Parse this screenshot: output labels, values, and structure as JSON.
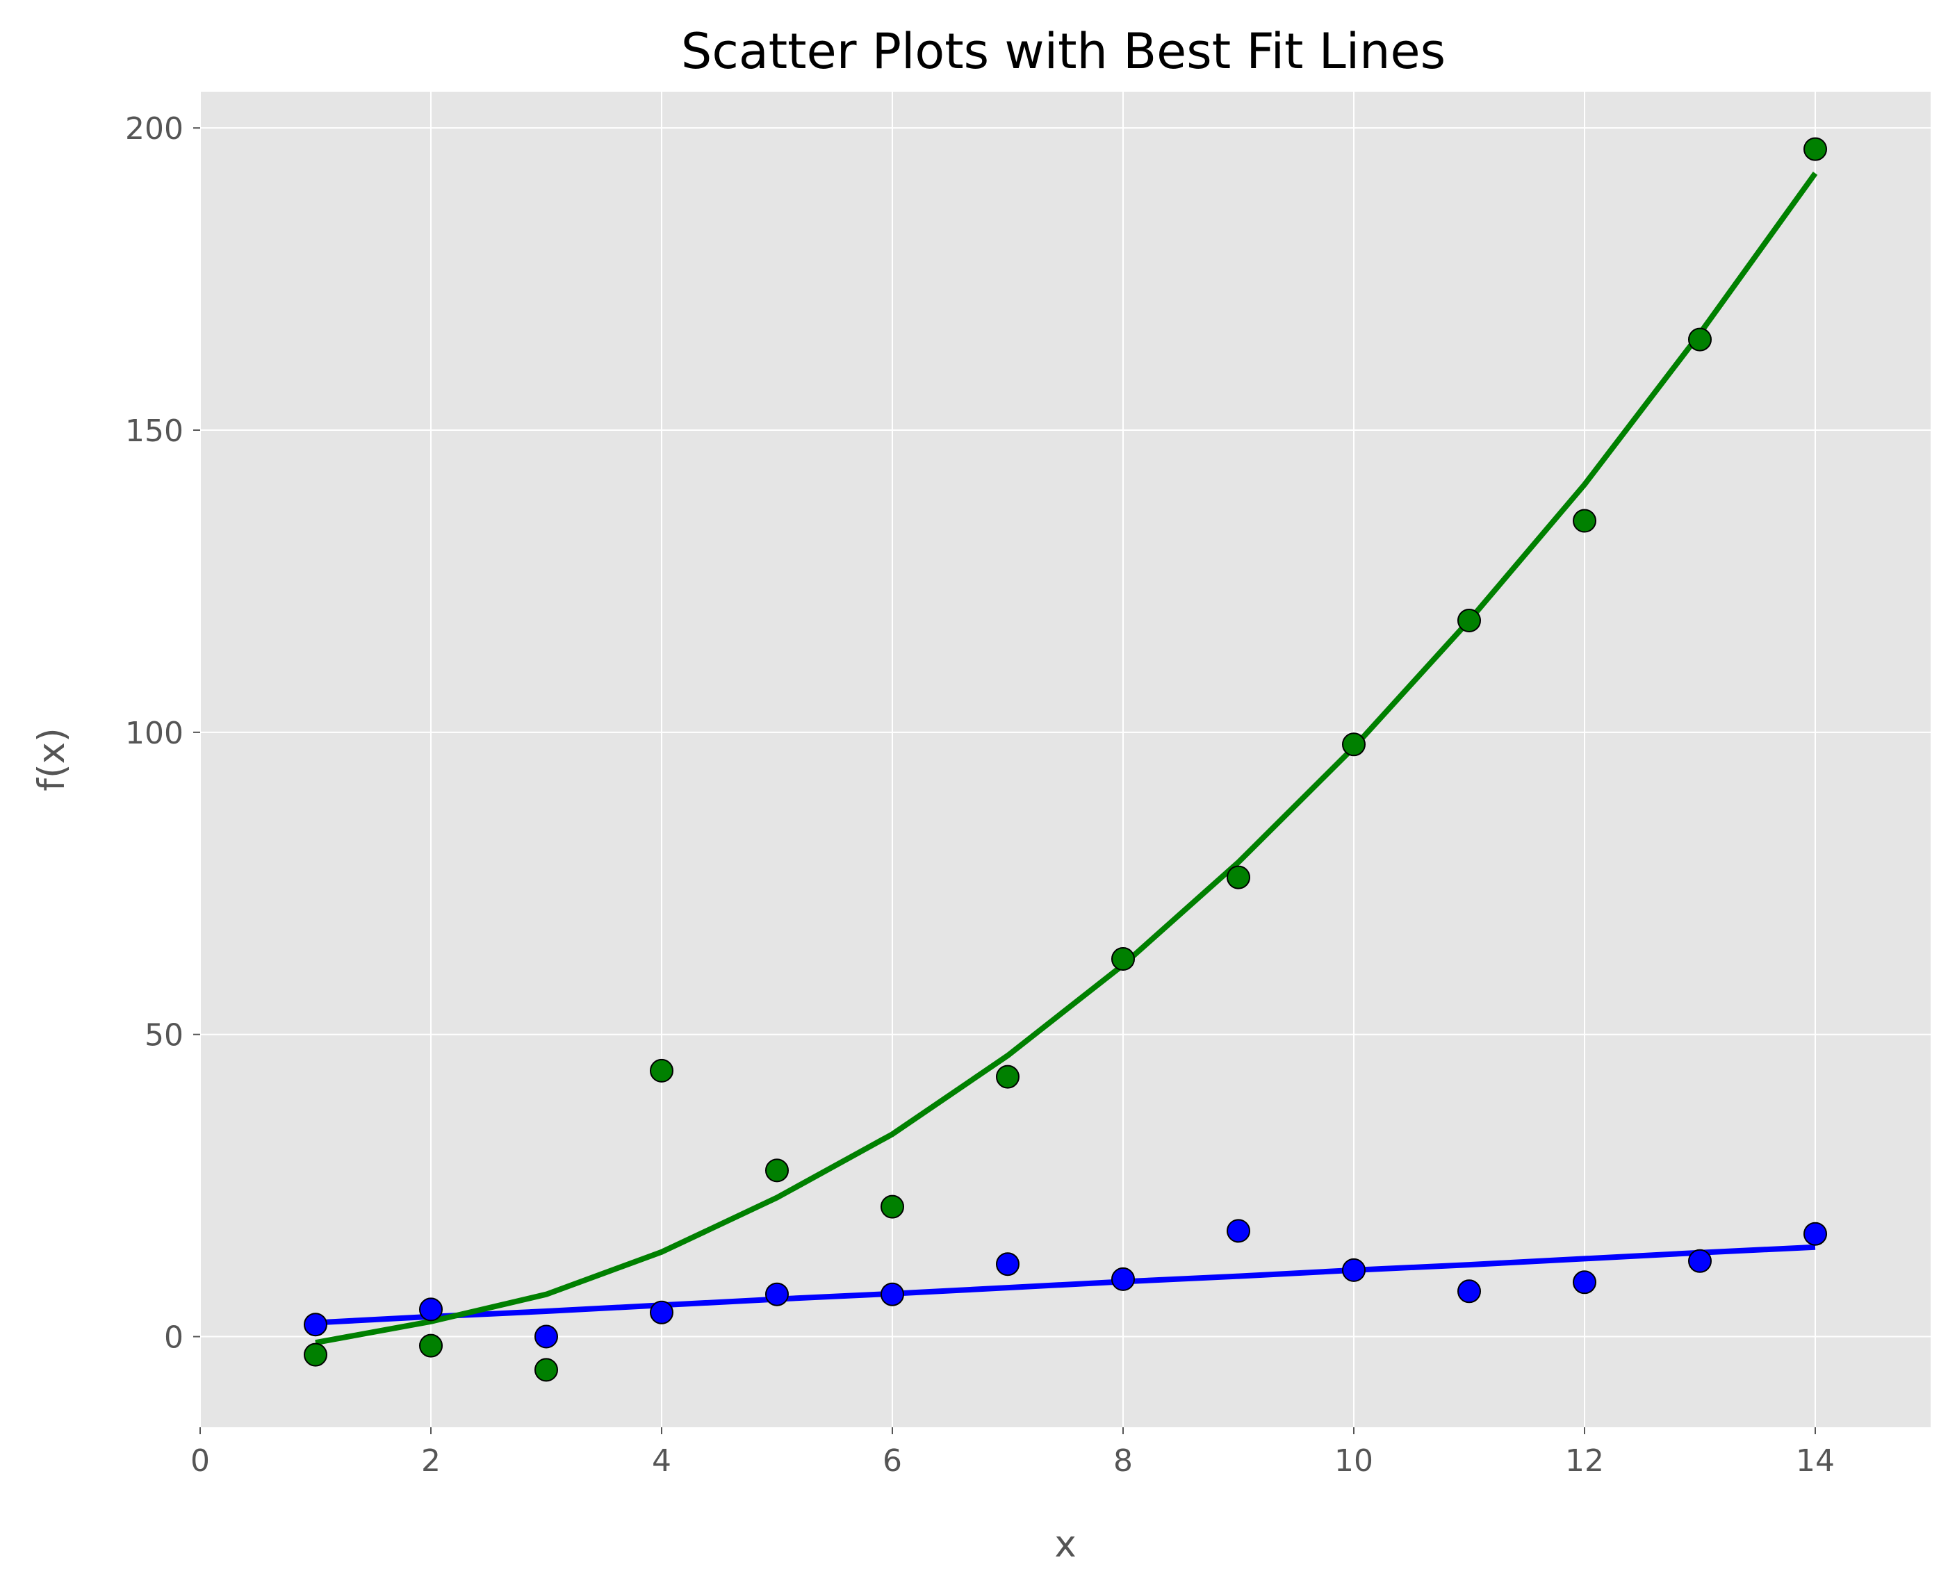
{
  "chart_data": {
    "type": "scatter",
    "title": "Scatter Plots with Best Fit Lines",
    "xlabel": "x",
    "ylabel": "f(x)",
    "xlim": [
      0,
      15
    ],
    "ylim": [
      -15,
      206
    ],
    "xticks": [
      0,
      2,
      4,
      6,
      8,
      10,
      12,
      14
    ],
    "yticks": [
      0,
      50,
      100,
      150,
      200
    ],
    "grid": true,
    "background": "#e5e5e5",
    "grid_color": "#ffffff",
    "series": [
      {
        "color": "#0000ff",
        "x": [
          1,
          2,
          3,
          4,
          5,
          6,
          7,
          8,
          9,
          10,
          11,
          12,
          13,
          14
        ],
        "y": [
          2,
          4.5,
          0,
          4,
          7,
          7,
          12,
          9.5,
          17.5,
          11,
          7.5,
          9,
          12.5,
          17
        ],
        "fit": [
          2.3,
          3.3,
          4.2,
          5.2,
          6.2,
          7.1,
          8.1,
          9.1,
          10.0,
          11.0,
          11.9,
          12.9,
          13.9,
          14.8
        ]
      },
      {
        "color": "#008000",
        "x": [
          1,
          2,
          3,
          4,
          5,
          6,
          7,
          8,
          9,
          10,
          11,
          12,
          13,
          14
        ],
        "y": [
          -3,
          -1.5,
          -5.5,
          44,
          27.5,
          21.5,
          43,
          62.5,
          76,
          98,
          118.5,
          135,
          165,
          196.5
        ],
        "fit": [
          -1,
          2.5,
          7,
          14,
          23,
          33.5,
          46.5,
          61.5,
          78.5,
          97.5,
          118.5,
          141,
          166,
          192.5
        ]
      }
    ]
  }
}
